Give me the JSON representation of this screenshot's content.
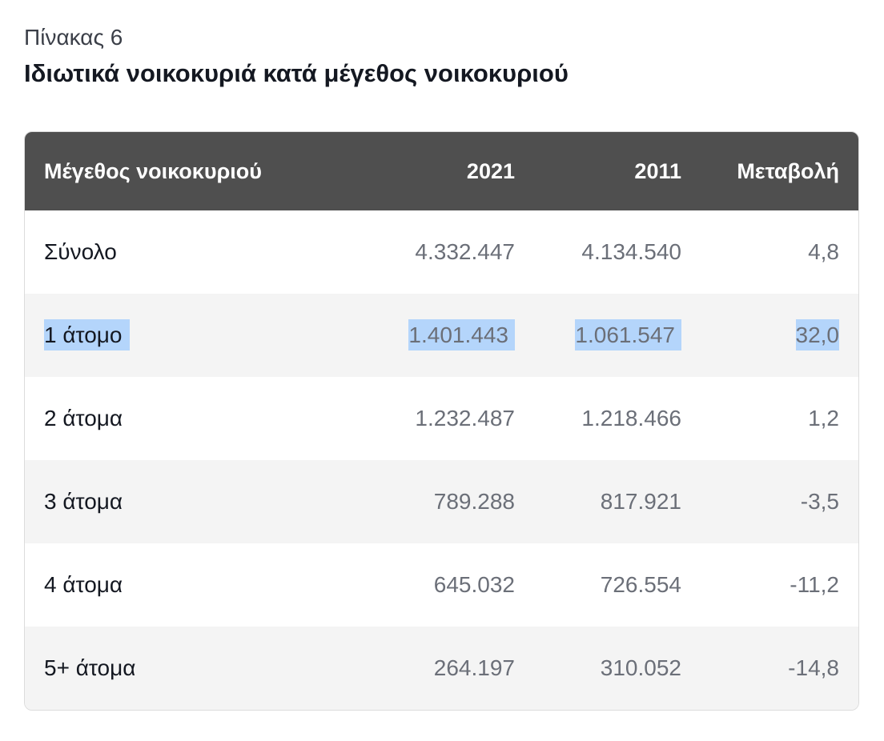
{
  "header": {
    "subtitle": "Πίνακας 6",
    "title": "Ιδιωτικά νοικοκυριά κατά μέγεθος νοικοκυριού"
  },
  "table": {
    "columns": [
      "Μέγεθος νοικοκυριού",
      "2021",
      "2011",
      "Μεταβολή"
    ],
    "rows": [
      {
        "label": "Σύνολο",
        "y2021": "4.332.447",
        "y2011": "4.134.540",
        "change": "4,8",
        "selected": false
      },
      {
        "label": "1 άτομο",
        "y2021": "1.401.443",
        "y2011": "1.061.547",
        "change": "32,0",
        "selected": true
      },
      {
        "label": "2 άτομα",
        "y2021": "1.232.487",
        "y2011": "1.218.466",
        "change": "1,2",
        "selected": false
      },
      {
        "label": "3 άτομα",
        "y2021": "789.288",
        "y2011": "817.921",
        "change": "-3,5",
        "selected": false
      },
      {
        "label": "4 άτομα",
        "y2021": "645.032",
        "y2011": "726.554",
        "change": "-11,2",
        "selected": false
      },
      {
        "label": "5+ άτομα",
        "y2021": "264.197",
        "y2011": "310.052",
        "change": "-14,8",
        "selected": false
      }
    ]
  },
  "colors": {
    "header_bg": "#4f4f4f",
    "stripe_bg": "#f4f4f4",
    "selection": "#b4d5fb",
    "value_text": "#6b6f78"
  }
}
